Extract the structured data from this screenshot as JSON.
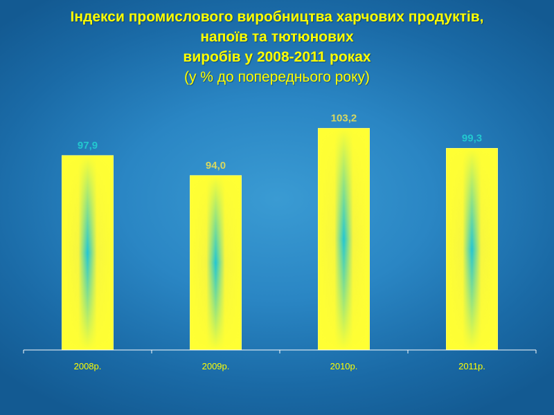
{
  "slide": {
    "title_lines": [
      "Індекси промислового виробництва харчових продуктів,",
      "напоїв  та тютюнових",
      "виробів у 2008-2011 роках"
    ],
    "subtitle": "(у % до попереднього року)"
  },
  "chart_data": {
    "type": "bar",
    "categories": [
      "2008р.",
      "2009р.",
      "2010р.",
      "2011р."
    ],
    "values": [
      97.9,
      94.0,
      103.2,
      99.3
    ],
    "data_labels": [
      "97,9",
      "94,0",
      "103,2",
      "99,3"
    ],
    "title": "",
    "xlabel": "",
    "ylabel": "",
    "ylim": [
      60,
      108
    ],
    "grid": false,
    "legend": "none",
    "colors": {
      "bar_edge": "#ffff33",
      "bar_center": "#22c6d4",
      "label_dark": "#22c8cf",
      "label_light": "#d8d860",
      "axis": "#ffffff",
      "title": "#ffff00"
    }
  }
}
